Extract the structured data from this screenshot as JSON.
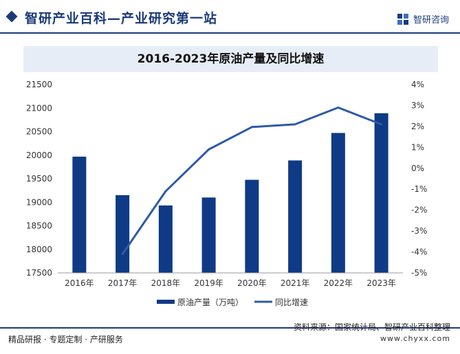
{
  "header": {
    "site_title": "智研产业百科—产业研究第一站",
    "brand": "智研咨询"
  },
  "chart_data": {
    "type": "bar",
    "title": "2016-2023年原油产量及同比增速",
    "categories": [
      "2016年",
      "2017年",
      "2018年",
      "2019年",
      "2020年",
      "2021年",
      "2022年",
      "2023年"
    ],
    "series": [
      {
        "name": "原油产量（万吨）",
        "type": "bar",
        "axis": "left",
        "color": "#0f3a85",
        "values": [
          19969,
          19151,
          18932,
          19101,
          19477,
          19888,
          20472,
          20891
        ]
      },
      {
        "name": "同比增速",
        "type": "line",
        "axis": "right",
        "color": "#2e5aa8",
        "values": [
          null,
          -4.1,
          -1.1,
          0.9,
          1.97,
          2.1,
          2.9,
          2.1
        ]
      }
    ],
    "left_axis": {
      "ylim": [
        17500,
        21500
      ],
      "ticks": [
        "17500",
        "18000",
        "18500",
        "19000",
        "19500",
        "20000",
        "20500",
        "21000",
        "21500"
      ]
    },
    "right_axis": {
      "ylim": [
        -5,
        4
      ],
      "ticks": [
        "-5%",
        "-4%",
        "-3%",
        "-2%",
        "-1%",
        "0%",
        "1%",
        "2%",
        "3%",
        "4%"
      ]
    },
    "legend_position": "bottom"
  },
  "footer": {
    "source": "资料来源：国家统计局、智研产业百科整理",
    "url": "www.chyxx.com",
    "tagline": "精品研报 · 专题定制 · 产研服务"
  }
}
